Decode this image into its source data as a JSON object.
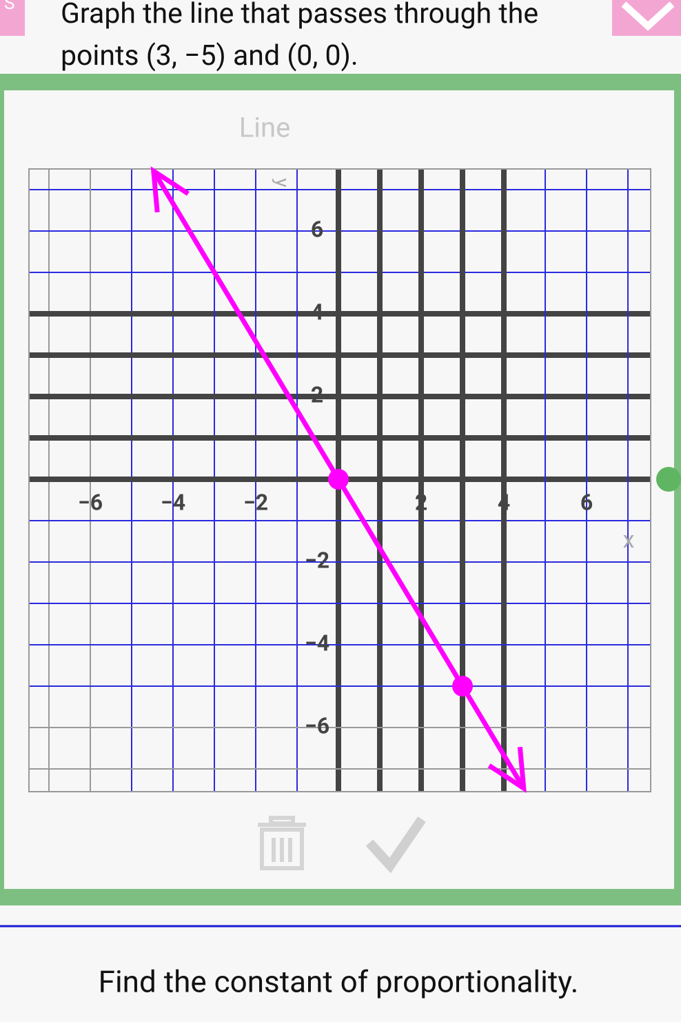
{
  "header": {
    "badge": "S",
    "question_line_1": "Graph the line that passes through the",
    "question_line_2": "points (3, −5) and (0, 0)."
  },
  "graph": {
    "title": "Line",
    "x_label": "x",
    "y_label": "y",
    "xticks": [
      {
        "value": -6,
        "label": "−6"
      },
      {
        "value": -4,
        "label": "−4"
      },
      {
        "value": -2,
        "label": "−2"
      },
      2,
      4,
      6
    ],
    "yticks": [
      6,
      4,
      2,
      {
        "value": -2,
        "label": "−2"
      },
      {
        "value": -4,
        "label": "−4"
      },
      {
        "value": -6,
        "label": "−6"
      }
    ],
    "points": [
      {
        "x": 3,
        "y": -5
      },
      {
        "x": 0,
        "y": 0
      }
    ]
  },
  "footer": {
    "prompt": "Find the constant of proportionality."
  }
}
